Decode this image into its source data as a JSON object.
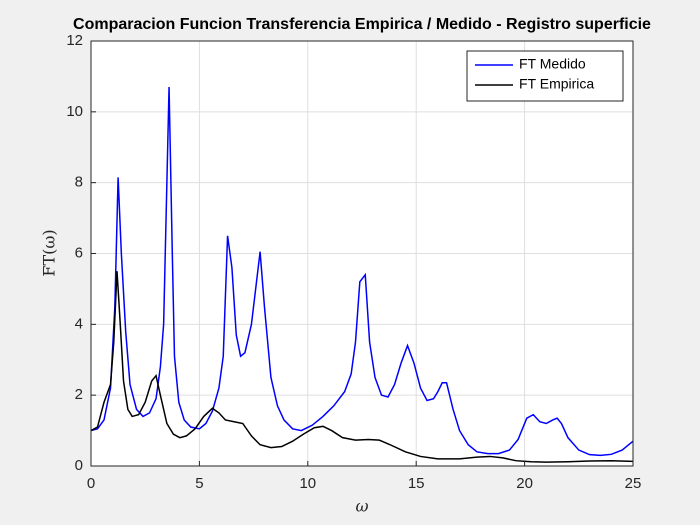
{
  "chart_data": {
    "type": "line",
    "title": "Comparacion Funcion Transferencia Empirica / Medido - Registro superficie",
    "x_label": "ω",
    "y_label": "FT(ω)",
    "xlim": [
      0,
      25
    ],
    "xticks": [
      0,
      5,
      10,
      15,
      20,
      25
    ],
    "ylim": [
      0,
      12
    ],
    "yticks": [
      0,
      2,
      4,
      6,
      8,
      10,
      12
    ],
    "grid": true,
    "legend": "northeast",
    "series": [
      {
        "name": "FT Medido",
        "color": "#0000ff",
        "x": [
          0,
          0.3,
          0.6,
          0.9,
          1.1,
          1.25,
          1.4,
          1.6,
          1.8,
          2.1,
          2.4,
          2.7,
          3.0,
          3.2,
          3.35,
          3.5,
          3.6,
          3.75,
          3.85,
          4.05,
          4.3,
          4.6,
          5.0,
          5.3,
          5.6,
          5.9,
          6.1,
          6.3,
          6.5,
          6.7,
          6.9,
          7.1,
          7.4,
          7.8,
          8.0,
          8.3,
          8.6,
          8.9,
          9.3,
          9.7,
          10.2,
          10.7,
          11.2,
          11.7,
          12.0,
          12.2,
          12.4,
          12.65,
          12.85,
          13.1,
          13.4,
          13.7,
          14.0,
          14.3,
          14.6,
          14.9,
          15.2,
          15.5,
          15.8,
          16.0,
          16.2,
          16.4,
          16.7,
          17.0,
          17.4,
          17.8,
          18.3,
          18.8,
          19.3,
          19.7,
          20.1,
          20.4,
          20.7,
          21.0,
          21.3,
          21.5,
          21.7,
          22.0,
          22.5,
          23.0,
          23.5,
          24.0,
          24.5,
          25.0
        ],
        "values": [
          1.0,
          1.05,
          1.3,
          2.2,
          4.5,
          8.15,
          6.0,
          3.8,
          2.3,
          1.6,
          1.4,
          1.5,
          1.9,
          2.8,
          4.0,
          8.0,
          10.7,
          6.0,
          3.1,
          1.8,
          1.3,
          1.1,
          1.05,
          1.2,
          1.55,
          2.2,
          3.1,
          6.5,
          5.6,
          3.7,
          3.1,
          3.2,
          4.0,
          6.05,
          4.5,
          2.5,
          1.7,
          1.3,
          1.05,
          1.0,
          1.15,
          1.4,
          1.7,
          2.1,
          2.6,
          3.5,
          5.2,
          5.4,
          3.5,
          2.5,
          2.0,
          1.95,
          2.3,
          2.9,
          3.4,
          2.9,
          2.2,
          1.85,
          1.9,
          2.1,
          2.35,
          2.35,
          1.6,
          1.0,
          0.6,
          0.4,
          0.35,
          0.35,
          0.45,
          0.75,
          1.35,
          1.45,
          1.25,
          1.2,
          1.3,
          1.35,
          1.2,
          0.8,
          0.45,
          0.32,
          0.3,
          0.33,
          0.45,
          0.7
        ]
      },
      {
        "name": "FT Empirica",
        "color": "#000000",
        "x": [
          0,
          0.3,
          0.6,
          0.9,
          1.05,
          1.2,
          1.35,
          1.5,
          1.7,
          1.9,
          2.2,
          2.5,
          2.8,
          3.0,
          3.2,
          3.5,
          3.8,
          4.1,
          4.4,
          4.8,
          5.2,
          5.6,
          5.9,
          6.2,
          6.6,
          7.0,
          7.4,
          7.8,
          8.3,
          8.8,
          9.3,
          9.8,
          10.3,
          10.7,
          11.1,
          11.6,
          12.2,
          12.8,
          13.3,
          13.8,
          14.5,
          15.2,
          16.0,
          17.0,
          17.8,
          18.4,
          19.0,
          19.6,
          20.3,
          21.0,
          22.0,
          23.0,
          24.0,
          25.0
        ],
        "values": [
          1.0,
          1.1,
          1.8,
          2.3,
          3.5,
          5.5,
          4.0,
          2.4,
          1.6,
          1.4,
          1.45,
          1.8,
          2.4,
          2.55,
          2.0,
          1.2,
          0.9,
          0.8,
          0.85,
          1.05,
          1.4,
          1.63,
          1.5,
          1.3,
          1.25,
          1.2,
          0.85,
          0.6,
          0.52,
          0.55,
          0.7,
          0.9,
          1.08,
          1.12,
          1.0,
          0.8,
          0.73,
          0.75,
          0.73,
          0.6,
          0.4,
          0.27,
          0.2,
          0.2,
          0.25,
          0.27,
          0.23,
          0.15,
          0.12,
          0.11,
          0.12,
          0.14,
          0.15,
          0.13
        ]
      }
    ]
  }
}
